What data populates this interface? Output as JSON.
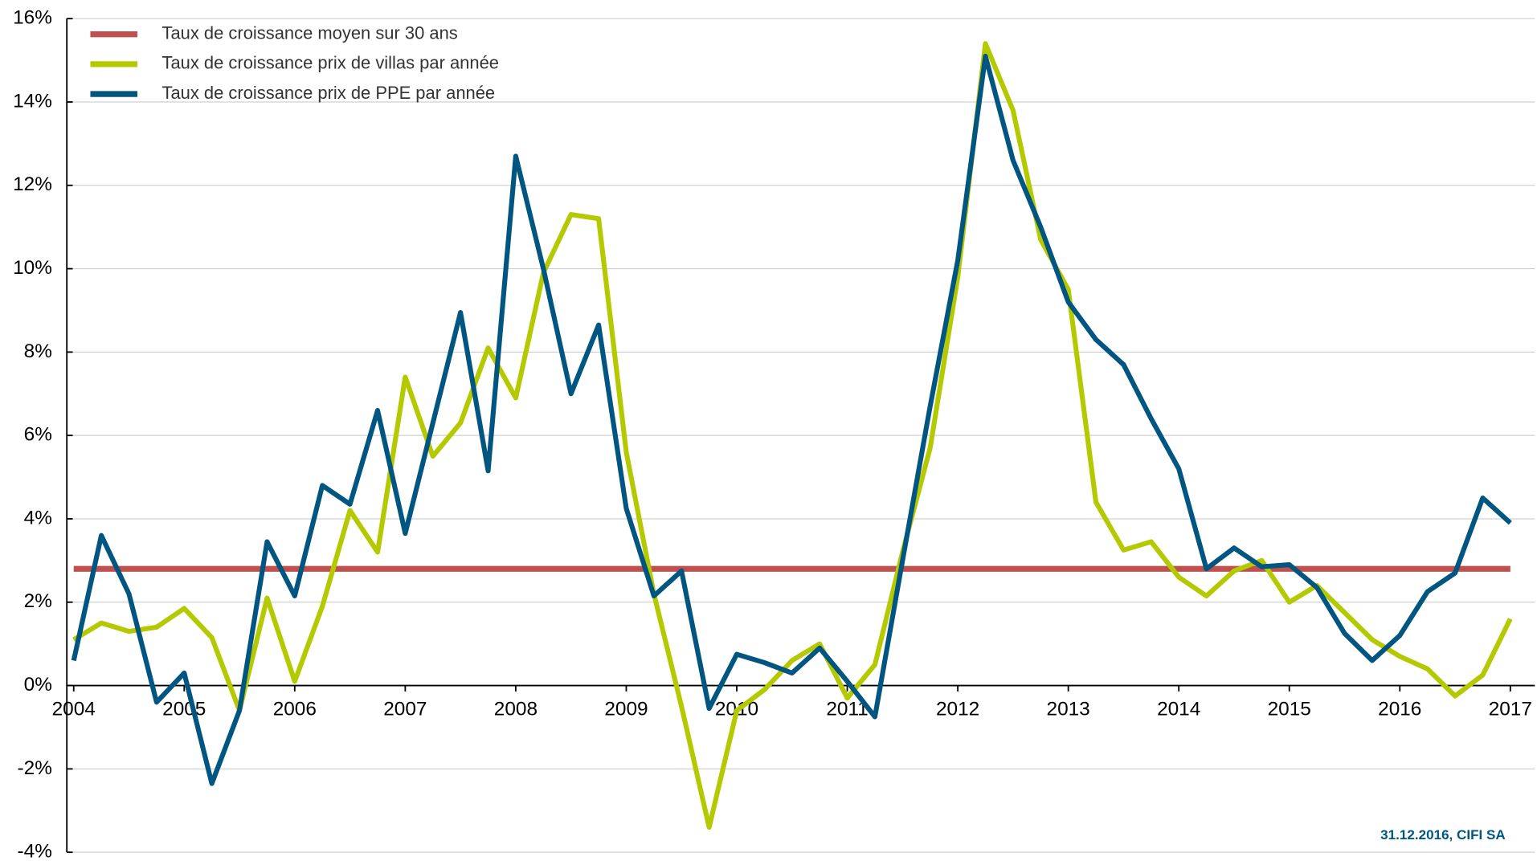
{
  "chart_data": {
    "type": "line",
    "x": [
      2004,
      2004.25,
      2004.5,
      2004.75,
      2005,
      2005.25,
      2005.5,
      2005.75,
      2006,
      2006.25,
      2006.5,
      2006.75,
      2007,
      2007.25,
      2007.5,
      2007.75,
      2008,
      2008.25,
      2008.5,
      2008.75,
      2009,
      2009.25,
      2009.5,
      2009.75,
      2010,
      2010.25,
      2010.5,
      2010.75,
      2011,
      2011.25,
      2011.5,
      2011.75,
      2012,
      2012.25,
      2012.5,
      2012.75,
      2013,
      2013.25,
      2013.5,
      2013.75,
      2014,
      2014.25,
      2014.5,
      2014.75,
      2015,
      2015.25,
      2015.5,
      2015.75,
      2016,
      2016.25,
      2016.5,
      2016.75,
      2017
    ],
    "reference_line": {
      "name": "Taux de croissance moyen sur 30 ans",
      "color": "#c0504d",
      "value": 2.8
    },
    "series": [
      {
        "name": "Taux de croissance prix de villas par année",
        "color": "#b5c900",
        "values": [
          1.1,
          1.5,
          1.3,
          1.4,
          1.85,
          1.15,
          -0.6,
          2.1,
          0.1,
          1.9,
          4.2,
          3.2,
          7.4,
          5.5,
          6.3,
          8.1,
          6.9,
          9.9,
          11.3,
          11.2,
          5.6,
          2.2,
          -0.5,
          -3.4,
          -0.6,
          -0.1,
          0.6,
          1.0,
          -0.3,
          0.5,
          3.2,
          5.7,
          9.8,
          15.4,
          13.8,
          10.7,
          9.5,
          4.4,
          3.25,
          3.45,
          2.6,
          2.15,
          2.75,
          3.0,
          2.0,
          2.4,
          1.75,
          1.1,
          0.7,
          0.4,
          -0.25,
          0.25,
          1.6
        ]
      },
      {
        "name": "Taux de croissance prix de PPE par année",
        "color": "#005581",
        "values": [
          0.6,
          3.6,
          2.2,
          -0.4,
          0.3,
          -2.35,
          -0.6,
          3.45,
          2.15,
          4.8,
          4.35,
          6.6,
          3.65,
          6.3,
          8.95,
          5.15,
          12.7,
          10.0,
          7.0,
          8.65,
          4.25,
          2.15,
          2.75,
          -0.55,
          0.75,
          0.55,
          0.3,
          0.9,
          0.1,
          -0.75,
          3.0,
          6.7,
          10.2,
          15.1,
          12.6,
          11.0,
          9.2,
          8.3,
          7.7,
          6.4,
          5.2,
          2.8,
          3.3,
          2.85,
          2.9,
          2.35,
          1.25,
          0.6,
          1.2,
          2.25,
          2.7,
          4.5,
          3.9
        ]
      }
    ],
    "xlim": [
      2004,
      2017
    ],
    "xticks": [
      2004,
      2005,
      2006,
      2007,
      2008,
      2009,
      2010,
      2011,
      2012,
      2013,
      2014,
      2015,
      2016,
      2017
    ],
    "ylim": [
      -4,
      16
    ],
    "yticks": [
      {
        "value": -4,
        "label": "-4%"
      },
      {
        "value": -2,
        "label": "-2%"
      },
      {
        "value": 0,
        "label": "0%"
      },
      {
        "value": 2,
        "label": "2%"
      },
      {
        "value": 4,
        "label": "4%"
      },
      {
        "value": 6,
        "label": "6%"
      },
      {
        "value": 8,
        "label": "8%"
      },
      {
        "value": 10,
        "label": "10%"
      },
      {
        "value": 12,
        "label": "12%"
      },
      {
        "value": 14,
        "label": "14%"
      },
      {
        "value": 16,
        "label": "16%"
      }
    ],
    "grid": true,
    "legend": "top-left",
    "source": "31.12.2016, CIFI SA"
  }
}
